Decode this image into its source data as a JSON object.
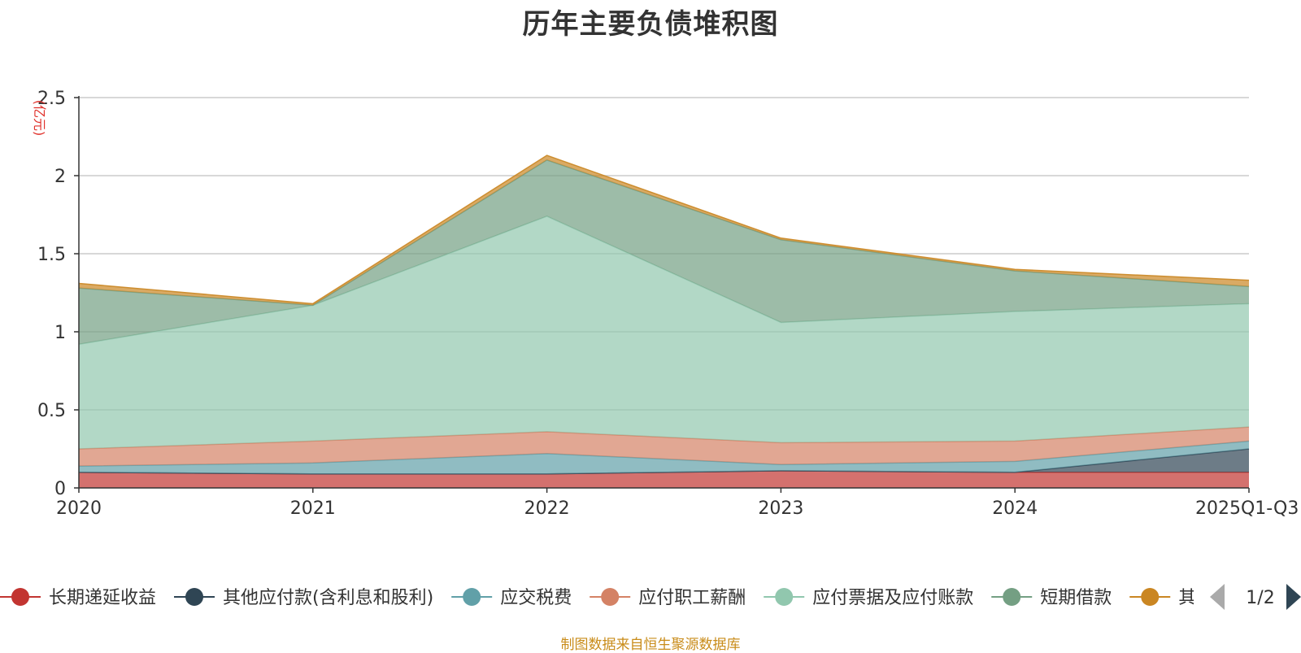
{
  "chart_data": {
    "type": "area",
    "title": "历年主要负债堆积图",
    "ylabel": "(亿元)",
    "xlabel": "",
    "ylim": [
      0,
      2.5
    ],
    "yticks": [
      0,
      0.5,
      1,
      1.5,
      2,
      2.5
    ],
    "ytick_labels": [
      "0",
      "0.5",
      "1",
      "1.5",
      "2",
      "2.5"
    ],
    "categories": [
      "2020",
      "2021",
      "2022",
      "2023",
      "2024",
      "2025Q1-Q3"
    ],
    "grid": true,
    "stacked": true,
    "series": [
      {
        "name": "长期递延收益",
        "color": "#c23531",
        "values": [
          0.1,
          0.09,
          0.09,
          0.11,
          0.1,
          0.1
        ]
      },
      {
        "name": "其他应付款(含利息和股利)",
        "color": "#2f4554",
        "values": [
          0.0,
          0.0,
          0.0,
          0.0,
          0.0,
          0.15
        ]
      },
      {
        "name": "应交税费",
        "color": "#61a0a8",
        "values": [
          0.04,
          0.07,
          0.13,
          0.04,
          0.07,
          0.05
        ]
      },
      {
        "name": "应付职工薪酬",
        "color": "#d48265",
        "values": [
          0.11,
          0.14,
          0.14,
          0.14,
          0.13,
          0.09
        ]
      },
      {
        "name": "应付票据及应付账款",
        "color": "#91c7ae",
        "values": [
          0.67,
          0.87,
          1.38,
          0.77,
          0.83,
          0.79
        ]
      },
      {
        "name": "短期借款",
        "color": "#749f83",
        "values": [
          0.36,
          0.0,
          0.36,
          0.53,
          0.26,
          0.11
        ]
      },
      {
        "name": "其他",
        "color": "#ca8622",
        "values": [
          0.03,
          0.01,
          0.03,
          0.01,
          0.01,
          0.04
        ]
      }
    ],
    "legend": {
      "position": "bottom",
      "page_indicator": "1/2"
    }
  },
  "source_note": "制图数据来自恒生聚源数据库"
}
